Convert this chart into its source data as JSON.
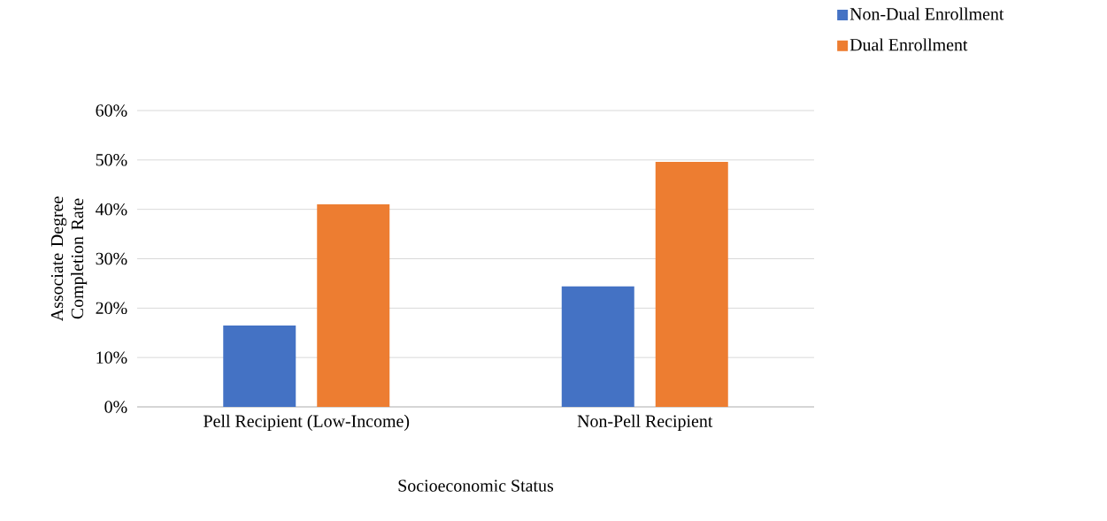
{
  "chart_data": {
    "type": "bar",
    "xlabel": "Socioeconomic Status",
    "ylabel": "Associate Degree Completion Rate",
    "categories": [
      "Pell Recipient (Low-Income)",
      "Non-Pell Recipient"
    ],
    "series": [
      {
        "name": "Non-Dual Enrollment",
        "color": "#4472c4",
        "values": [
          16.5,
          24.4
        ]
      },
      {
        "name": "Dual Enrollment",
        "color": "#ed7d31",
        "values": [
          41,
          49.6
        ]
      }
    ],
    "ylim": [
      0,
      60
    ],
    "yticks": [
      {
        "value": 0,
        "label": "0%"
      },
      {
        "value": 10,
        "label": "10%"
      },
      {
        "value": 20,
        "label": "20%"
      },
      {
        "value": 30,
        "label": "30%"
      },
      {
        "value": 40,
        "label": "40%"
      },
      {
        "value": 50,
        "label": "50%"
      },
      {
        "value": 60,
        "label": "60%"
      }
    ],
    "grid": "y",
    "legend": "top right"
  }
}
